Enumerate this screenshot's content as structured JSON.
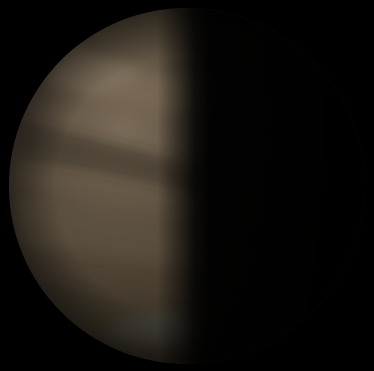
{
  "scene": {
    "subject": "planet-half-phase",
    "colors": {
      "background": "#000000",
      "lit_base": "#4a3f31",
      "lit_highlight": "#7a6b58",
      "band_light": "#6a5b48",
      "band_dark": "#2f271e",
      "terminator_glow": "#3a332b",
      "night_side": "#050505"
    },
    "illumination": {
      "lit_side": "left",
      "illuminated_fraction": 0.5
    }
  }
}
